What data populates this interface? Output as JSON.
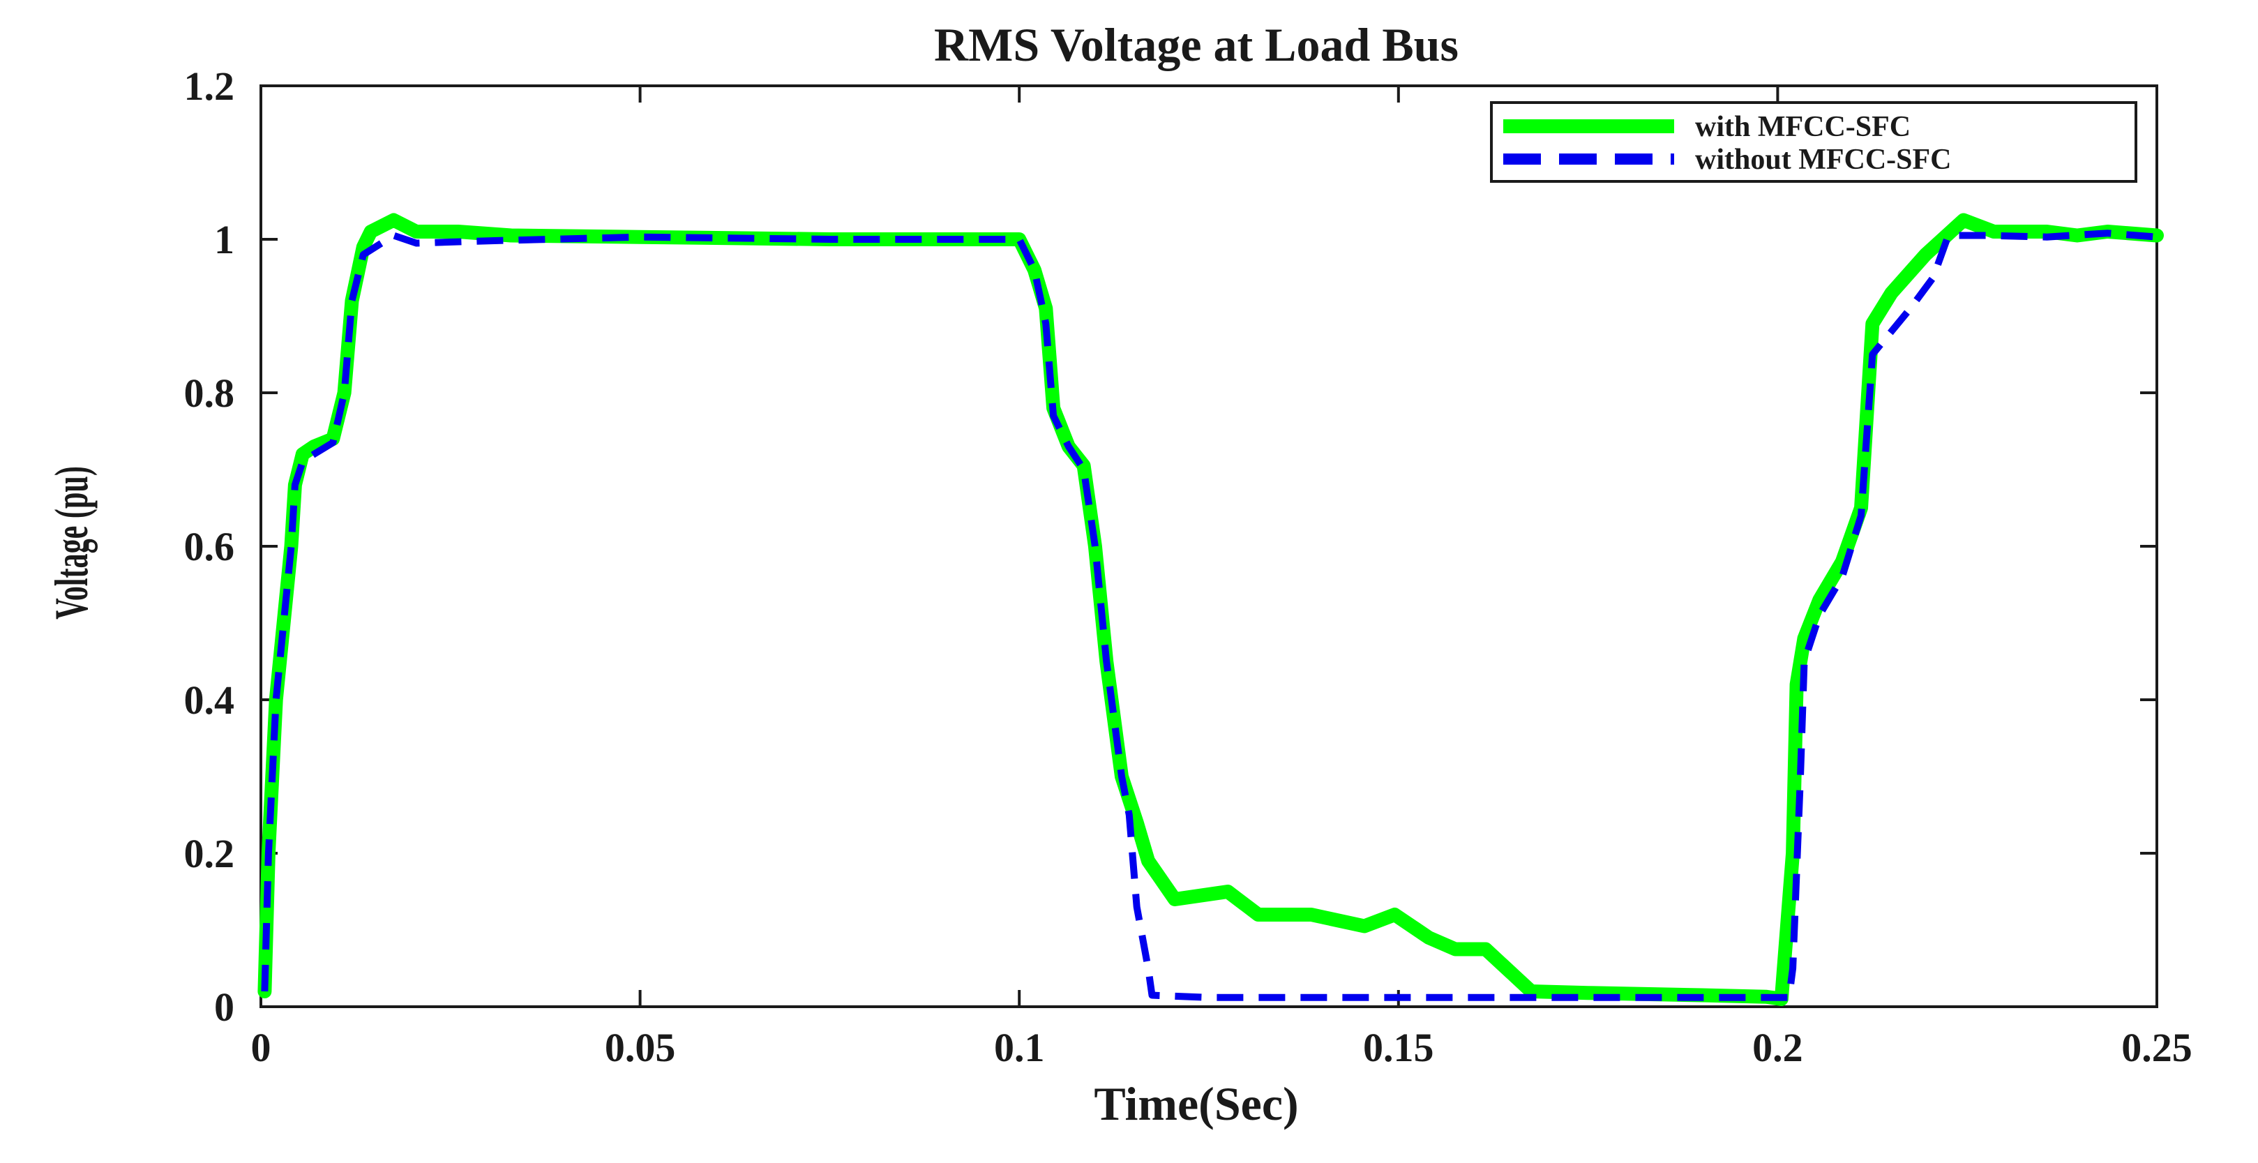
{
  "chart_data": {
    "type": "line",
    "title": "RMS Voltage at Load Bus",
    "xlabel": "Time(Sec)",
    "ylabel": "Voltage (pu)",
    "xlim": [
      0,
      0.25
    ],
    "ylim": [
      0,
      1.2
    ],
    "xticks": [
      0,
      0.05,
      0.1,
      0.15,
      0.2,
      0.25
    ],
    "xtick_labels": [
      "0",
      "0.05",
      "0.1",
      "0.15",
      "0.2",
      "0.25"
    ],
    "yticks": [
      0,
      0.2,
      0.4,
      0.6,
      0.8,
      1.0,
      1.2
    ],
    "ytick_labels": [
      "0",
      "0.2",
      "0.4",
      "0.6",
      "0.8",
      "1",
      "1.2"
    ],
    "grid": false,
    "legend_position": "top-right",
    "series": [
      {
        "name": "with MFCC-SFC",
        "color": "#00ff00",
        "style": "solid",
        "points": [
          [
            0.0005,
            0.02
          ],
          [
            0.001,
            0.2
          ],
          [
            0.002,
            0.4
          ],
          [
            0.004,
            0.6
          ],
          [
            0.0045,
            0.68
          ],
          [
            0.0055,
            0.72
          ],
          [
            0.007,
            0.73
          ],
          [
            0.0095,
            0.74
          ],
          [
            0.011,
            0.8
          ],
          [
            0.012,
            0.92
          ],
          [
            0.0135,
            0.99
          ],
          [
            0.0145,
            1.01
          ],
          [
            0.0175,
            1.025
          ],
          [
            0.0205,
            1.01
          ],
          [
            0.026,
            1.01
          ],
          [
            0.033,
            1.005
          ],
          [
            0.05,
            1.003
          ],
          [
            0.075,
            1.0
          ],
          [
            0.1,
            1.0
          ],
          [
            0.102,
            0.96
          ],
          [
            0.1035,
            0.91
          ],
          [
            0.1045,
            0.78
          ],
          [
            0.1065,
            0.73
          ],
          [
            0.1085,
            0.705
          ],
          [
            0.11,
            0.6
          ],
          [
            0.1115,
            0.45
          ],
          [
            0.1135,
            0.3
          ],
          [
            0.1155,
            0.24
          ],
          [
            0.117,
            0.19
          ],
          [
            0.1205,
            0.14
          ],
          [
            0.1275,
            0.15
          ],
          [
            0.1315,
            0.12
          ],
          [
            0.1385,
            0.12
          ],
          [
            0.1455,
            0.105
          ],
          [
            0.1495,
            0.12
          ],
          [
            0.154,
            0.09
          ],
          [
            0.1575,
            0.075
          ],
          [
            0.1615,
            0.075
          ],
          [
            0.1675,
            0.02
          ],
          [
            0.175,
            0.018
          ],
          [
            0.19,
            0.015
          ],
          [
            0.1985,
            0.013
          ],
          [
            0.2005,
            0.01
          ],
          [
            0.202,
            0.2
          ],
          [
            0.2025,
            0.42
          ],
          [
            0.2035,
            0.48
          ],
          [
            0.2055,
            0.53
          ],
          [
            0.2085,
            0.58
          ],
          [
            0.211,
            0.65
          ],
          [
            0.2125,
            0.89
          ],
          [
            0.215,
            0.93
          ],
          [
            0.2195,
            0.98
          ],
          [
            0.2245,
            1.025
          ],
          [
            0.2285,
            1.01
          ],
          [
            0.2355,
            1.01
          ],
          [
            0.2395,
            1.005
          ],
          [
            0.2435,
            1.01
          ],
          [
            0.25,
            1.005
          ]
        ]
      },
      {
        "name": "without MFCC-SFC",
        "color": "#0000ee",
        "style": "dashed",
        "points": [
          [
            0.0005,
            0.02
          ],
          [
            0.001,
            0.2
          ],
          [
            0.002,
            0.4
          ],
          [
            0.004,
            0.6
          ],
          [
            0.0045,
            0.68
          ],
          [
            0.0055,
            0.71
          ],
          [
            0.007,
            0.72
          ],
          [
            0.0095,
            0.735
          ],
          [
            0.011,
            0.8
          ],
          [
            0.012,
            0.92
          ],
          [
            0.0135,
            0.98
          ],
          [
            0.0175,
            1.005
          ],
          [
            0.0205,
            0.995
          ],
          [
            0.03,
            0.998
          ],
          [
            0.05,
            1.003
          ],
          [
            0.075,
            1.0
          ],
          [
            0.1,
            1.0
          ],
          [
            0.102,
            0.96
          ],
          [
            0.1035,
            0.89
          ],
          [
            0.1045,
            0.77
          ],
          [
            0.1065,
            0.73
          ],
          [
            0.1085,
            0.7
          ],
          [
            0.11,
            0.6
          ],
          [
            0.1115,
            0.45
          ],
          [
            0.1135,
            0.3
          ],
          [
            0.1145,
            0.25
          ],
          [
            0.1155,
            0.13
          ],
          [
            0.117,
            0.05
          ],
          [
            0.1175,
            0.015
          ],
          [
            0.125,
            0.012
          ],
          [
            0.15,
            0.012
          ],
          [
            0.175,
            0.012
          ],
          [
            0.199,
            0.012
          ],
          [
            0.2015,
            0.012
          ],
          [
            0.202,
            0.05
          ],
          [
            0.203,
            0.3
          ],
          [
            0.2035,
            0.45
          ],
          [
            0.2055,
            0.51
          ],
          [
            0.2085,
            0.56
          ],
          [
            0.211,
            0.64
          ],
          [
            0.2125,
            0.85
          ],
          [
            0.215,
            0.88
          ],
          [
            0.2175,
            0.91
          ],
          [
            0.2205,
            0.95
          ],
          [
            0.2225,
            1.005
          ],
          [
            0.2275,
            1.005
          ],
          [
            0.2355,
            1.003
          ],
          [
            0.2435,
            1.008
          ],
          [
            0.25,
            1.003
          ]
        ]
      }
    ]
  }
}
